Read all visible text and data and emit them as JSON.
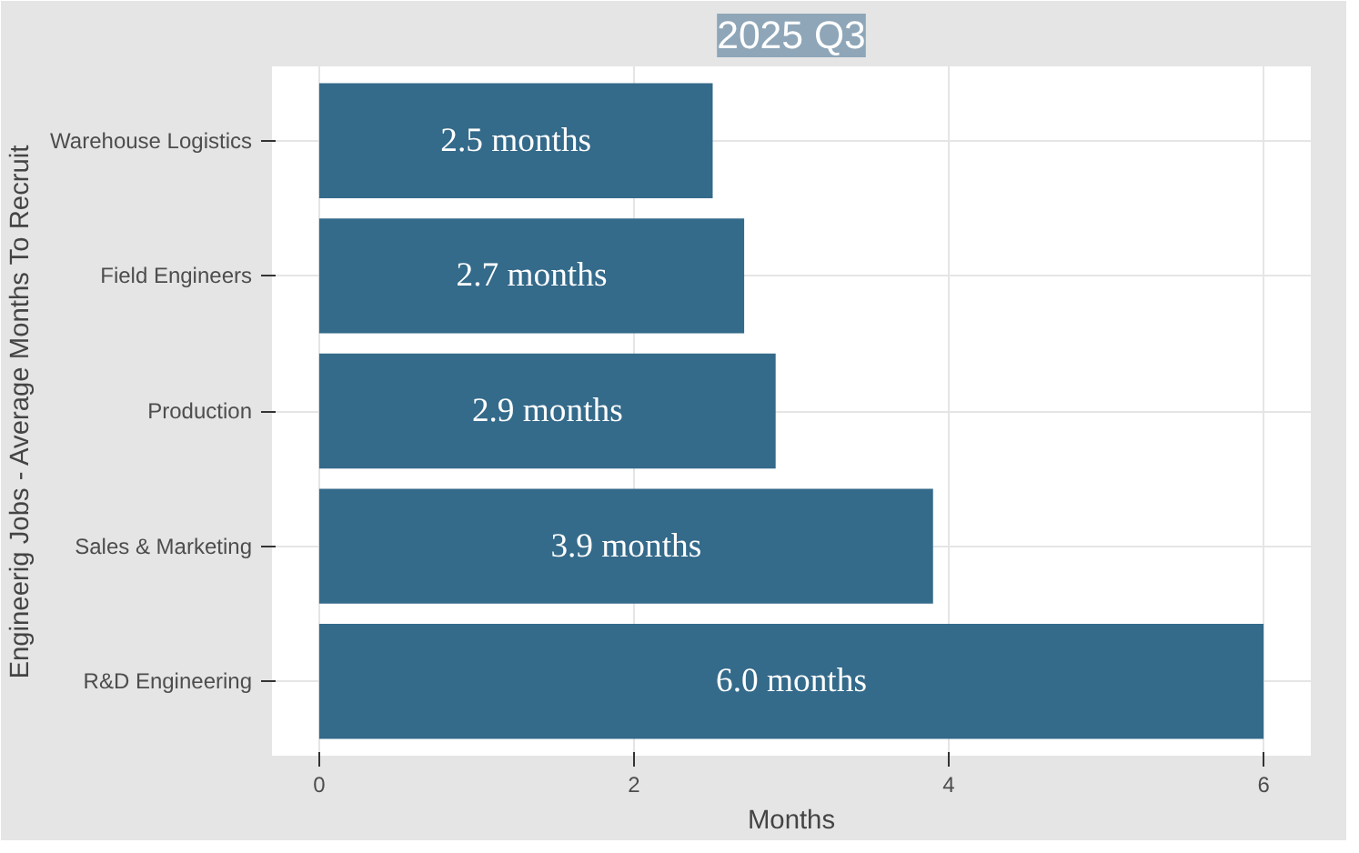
{
  "chart_data": {
    "type": "bar",
    "orientation": "horizontal",
    "title": "2025 Q3",
    "xlabel": "Months",
    "ylabel": "Engineerig Jobs - Average Months To Recruit",
    "categories": [
      "Warehouse Logistics",
      "Field Engineers",
      "Production",
      "Sales & Marketing",
      "R&D Engineering"
    ],
    "values": [
      2.5,
      2.7,
      2.9,
      3.9,
      6.0
    ],
    "value_labels": [
      "2.5 months",
      "2.7 months",
      "2.9 months",
      "3.9 months",
      "6.0 months"
    ],
    "color": "#346a8a",
    "xlim": [
      -0.3,
      6.3
    ],
    "xticks": [
      0,
      2,
      4,
      6
    ],
    "grid": true
  }
}
